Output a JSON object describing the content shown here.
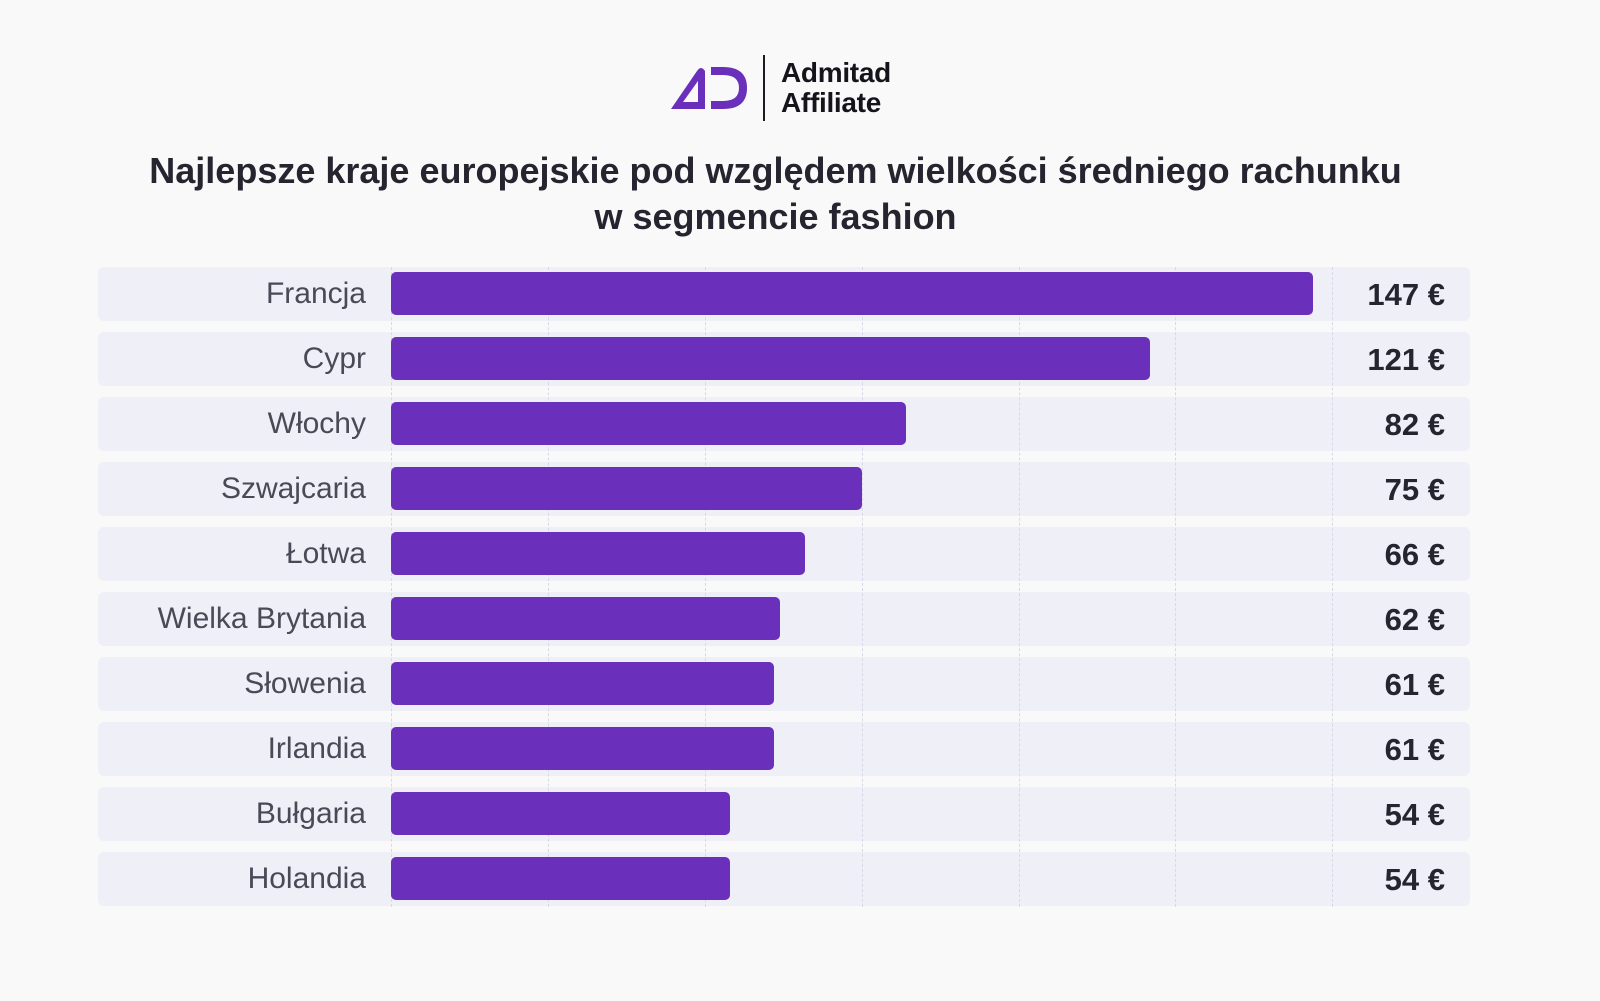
{
  "brand": {
    "line1": "Admitad",
    "line2": "Affiliate",
    "accent_color": "#6a2fbb"
  },
  "chart_data": {
    "type": "bar",
    "orientation": "horizontal",
    "title_line1": "Najlepsze kraje europejskie pod względem wielkości średniego rachunku",
    "title_line2": "w segmencie fashion",
    "categories": [
      "Francja",
      "Cypr",
      "Włochy",
      "Szwajcaria",
      "Łotwa",
      "Wielka Brytania",
      "Słowenia",
      "Irlandia",
      "Bułgaria",
      "Holandia"
    ],
    "values": [
      147,
      121,
      82,
      75,
      66,
      62,
      61,
      61,
      54,
      54
    ],
    "value_labels": [
      "147 €",
      "121 €",
      "82 €",
      "75 €",
      "66 €",
      "62 €",
      "61 €",
      "61 €",
      "54 €",
      "54 €"
    ],
    "unit": "€",
    "xlim": [
      0,
      150
    ],
    "gridlines": [
      0,
      25,
      50,
      75,
      100,
      125,
      150
    ],
    "grid": true,
    "legend": "none",
    "bar_color": "#6a2fbb",
    "xlabel": "",
    "ylabel": ""
  }
}
